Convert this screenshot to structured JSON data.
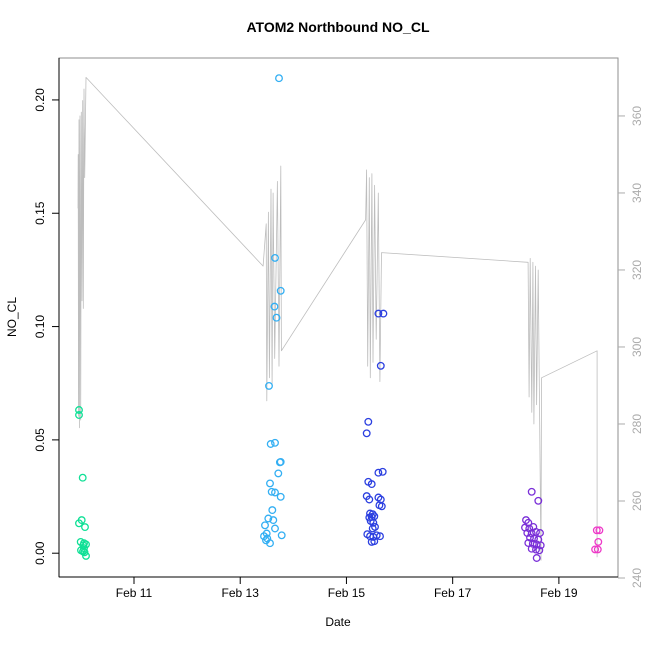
{
  "title": "ATOM2 Northbound NO_CL",
  "chart_data": {
    "type": "scatter",
    "title": "ATOM2 Northbound NO_CL",
    "xlabel": "Date",
    "ylabel_left": "NO_CL",
    "grid": false,
    "legend": "none",
    "x_range": [
      9.588,
      20.113
    ],
    "y_left_range": [
      -0.0105,
      0.2185
    ],
    "y_right_range": [
      240.26,
      375.05
    ],
    "x_ticks": [
      {
        "v": 11,
        "label": "Feb 11"
      },
      {
        "v": 13,
        "label": "Feb 13"
      },
      {
        "v": 15,
        "label": "Feb 15"
      },
      {
        "v": 17,
        "label": "Feb 17"
      },
      {
        "v": 19,
        "label": "Feb 19"
      }
    ],
    "y_left_ticks": [
      {
        "v": 0.0,
        "label": "0.00"
      },
      {
        "v": 0.05,
        "label": "0.05"
      },
      {
        "v": 0.1,
        "label": "0.10"
      },
      {
        "v": 0.15,
        "label": "0.15"
      },
      {
        "v": 0.2,
        "label": "0.20"
      }
    ],
    "y_right_ticks": [
      {
        "v": 240,
        "label": "240"
      },
      {
        "v": 260,
        "label": "260"
      },
      {
        "v": 280,
        "label": "280"
      },
      {
        "v": 300,
        "label": "300"
      },
      {
        "v": 320,
        "label": "320"
      },
      {
        "v": 340,
        "label": "340"
      },
      {
        "v": 360,
        "label": "360"
      }
    ],
    "colors": {
      "axis": "#000000",
      "right_axis": "#ababab",
      "box": "#8f8f8f",
      "trace_line": "#bdbdbd"
    },
    "line_series": {
      "name": "secondary-trace-right-axis",
      "axis": "right",
      "color": "#bdbdbd",
      "points": [
        [
          9.945,
          336
        ],
        [
          9.95,
          350
        ],
        [
          9.956,
          282
        ],
        [
          9.964,
          359
        ],
        [
          9.973,
          279
        ],
        [
          9.983,
          360
        ],
        [
          9.996,
          281
        ],
        [
          10.007,
          361
        ],
        [
          10.021,
          312
        ],
        [
          10.034,
          364
        ],
        [
          10.045,
          310
        ],
        [
          10.058,
          367
        ],
        [
          10.072,
          344
        ],
        [
          10.096,
          370
        ],
        [
          13.43,
          321
        ],
        [
          13.49,
          332
        ],
        [
          13.5,
          286
        ],
        [
          13.53,
          335
        ],
        [
          13.55,
          292
        ],
        [
          13.58,
          341
        ],
        [
          13.6,
          290
        ],
        [
          13.62,
          340
        ],
        [
          13.65,
          297
        ],
        [
          13.7,
          343
        ],
        [
          13.73,
          295
        ],
        [
          13.765,
          347
        ],
        [
          13.775,
          299
        ],
        [
          15.36,
          333
        ],
        [
          15.38,
          346
        ],
        [
          15.4,
          295
        ],
        [
          15.43,
          344
        ],
        [
          15.45,
          292
        ],
        [
          15.48,
          345
        ],
        [
          15.5,
          296
        ],
        [
          15.53,
          342
        ],
        [
          15.56,
          302
        ],
        [
          15.6,
          340
        ],
        [
          15.63,
          291
        ],
        [
          15.66,
          324.5
        ],
        [
          18.42,
          322
        ],
        [
          18.44,
          287
        ],
        [
          18.46,
          323
        ],
        [
          18.49,
          283
        ],
        [
          18.51,
          322
        ],
        [
          18.53,
          280
        ],
        [
          18.56,
          321
        ],
        [
          18.58,
          285
        ],
        [
          18.61,
          320
        ],
        [
          18.664,
          244.6
        ],
        [
          18.672,
          292
        ],
        [
          19.72,
          299
        ],
        [
          19.72,
          245.4
        ]
      ]
    },
    "series": [
      {
        "name": "flight-feb10",
        "color": "#0FE096",
        "points": [
          [
            9.964,
            0.0632
          ],
          [
            9.964,
            0.061
          ],
          [
            10.034,
            0.0333
          ],
          [
            10.015,
            0.0146
          ],
          [
            9.964,
            0.0132
          ],
          [
            10.077,
            0.0115
          ],
          [
            9.996,
            0.005
          ],
          [
            10.058,
            0.0044
          ],
          [
            10.096,
            0.0039
          ],
          [
            10.045,
            0.0035
          ],
          [
            10.058,
            0.0022
          ],
          [
            10.002,
            0.0013
          ],
          [
            10.04,
            0.0008
          ],
          [
            10.068,
            0.0004
          ],
          [
            10.096,
            -0.0012
          ]
        ]
      },
      {
        "name": "flight-feb13",
        "color": "#33AFF3",
        "points": [
          [
            13.73,
            0.2096
          ],
          [
            13.655,
            0.1303
          ],
          [
            13.762,
            0.1158
          ],
          [
            13.646,
            0.1088
          ],
          [
            13.683,
            0.1039
          ],
          [
            13.542,
            0.0738
          ],
          [
            13.655,
            0.0487
          ],
          [
            13.574,
            0.0482
          ],
          [
            13.762,
            0.0403
          ],
          [
            13.747,
            0.0401
          ],
          [
            13.717,
            0.0352
          ],
          [
            13.561,
            0.0308
          ],
          [
            13.593,
            0.0271
          ],
          [
            13.655,
            0.0268
          ],
          [
            13.762,
            0.0249
          ],
          [
            13.604,
            0.019
          ],
          [
            13.529,
            0.0153
          ],
          [
            13.623,
            0.0146
          ],
          [
            13.466,
            0.0123
          ],
          [
            13.655,
            0.0109
          ],
          [
            13.498,
            0.0087
          ],
          [
            13.781,
            0.0079
          ],
          [
            13.447,
            0.0075
          ],
          [
            13.51,
            0.0065
          ],
          [
            13.485,
            0.0057
          ],
          [
            13.561,
            0.0044
          ]
        ]
      },
      {
        "name": "flight-feb15",
        "color": "#2B3FE0",
        "points": [
          [
            15.601,
            0.1057
          ],
          [
            15.695,
            0.1057
          ],
          [
            15.646,
            0.0827
          ],
          [
            15.412,
            0.058
          ],
          [
            15.382,
            0.0529
          ],
          [
            15.683,
            0.0359
          ],
          [
            15.601,
            0.0355
          ],
          [
            15.412,
            0.0315
          ],
          [
            15.476,
            0.0305
          ],
          [
            15.382,
            0.0252
          ],
          [
            15.601,
            0.0246
          ],
          [
            15.431,
            0.0237
          ],
          [
            15.646,
            0.0237
          ],
          [
            15.62,
            0.0212
          ],
          [
            15.665,
            0.0207
          ],
          [
            15.444,
            0.0175
          ],
          [
            15.495,
            0.0172
          ],
          [
            15.525,
            0.0163
          ],
          [
            15.476,
            0.016
          ],
          [
            15.431,
            0.0157
          ],
          [
            15.457,
            0.0142
          ],
          [
            15.506,
            0.0134
          ],
          [
            15.538,
            0.0116
          ],
          [
            15.495,
            0.0109
          ],
          [
            15.393,
            0.0084
          ],
          [
            15.57,
            0.0079
          ],
          [
            15.444,
            0.0075
          ],
          [
            15.632,
            0.0075
          ],
          [
            15.506,
            0.0072
          ],
          [
            15.525,
            0.0053
          ],
          [
            15.476,
            0.005
          ]
        ]
      },
      {
        "name": "flight-feb18",
        "color": "#7A2FD8",
        "points": [
          [
            18.489,
            0.0271
          ],
          [
            18.613,
            0.0231
          ],
          [
            18.381,
            0.0146
          ],
          [
            18.425,
            0.0134
          ],
          [
            18.519,
            0.0116
          ],
          [
            18.362,
            0.0113
          ],
          [
            18.443,
            0.0109
          ],
          [
            18.57,
            0.0094
          ],
          [
            18.406,
            0.0089
          ],
          [
            18.645,
            0.0089
          ],
          [
            18.489,
            0.0087
          ],
          [
            18.457,
            0.0069
          ],
          [
            18.532,
            0.0065
          ],
          [
            18.613,
            0.006
          ],
          [
            18.425,
            0.0045
          ],
          [
            18.508,
            0.0042
          ],
          [
            18.583,
            0.0039
          ],
          [
            18.658,
            0.0035
          ],
          [
            18.489,
            0.002
          ],
          [
            18.57,
            0.0016
          ],
          [
            18.632,
            0.0013
          ],
          [
            18.583,
            -0.0021
          ]
        ]
      },
      {
        "name": "flight-feb19",
        "color": "#EE3AC8",
        "points": [
          [
            19.713,
            0.0101
          ],
          [
            19.762,
            0.0101
          ],
          [
            19.743,
            0.005
          ],
          [
            19.681,
            0.0017
          ],
          [
            19.732,
            0.0017
          ]
        ]
      }
    ]
  }
}
